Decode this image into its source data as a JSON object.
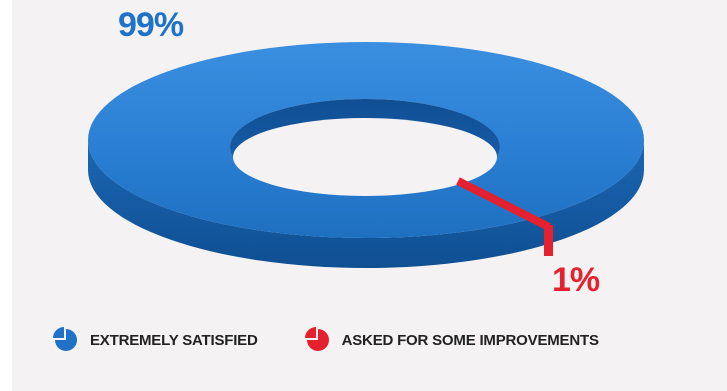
{
  "chart_data": {
    "type": "pie",
    "style": "3d-donut",
    "slices": [
      {
        "label": "EXTREMELY SATISFIED",
        "value": 99,
        "display": "99%",
        "color": "#1f72c6"
      },
      {
        "label": "ASKED FOR SOME IMPROVEMENTS",
        "value": 1,
        "display": "1%",
        "color": "#e6212f"
      }
    ],
    "legend_placement": "bottom"
  },
  "colors": {
    "background": "#f4f2f2",
    "satisfied": "#1f72c6",
    "improvements": "#e6212f"
  },
  "icons": {
    "satisfied": "pie-chart-icon",
    "improvements": "pie-chart-icon"
  }
}
